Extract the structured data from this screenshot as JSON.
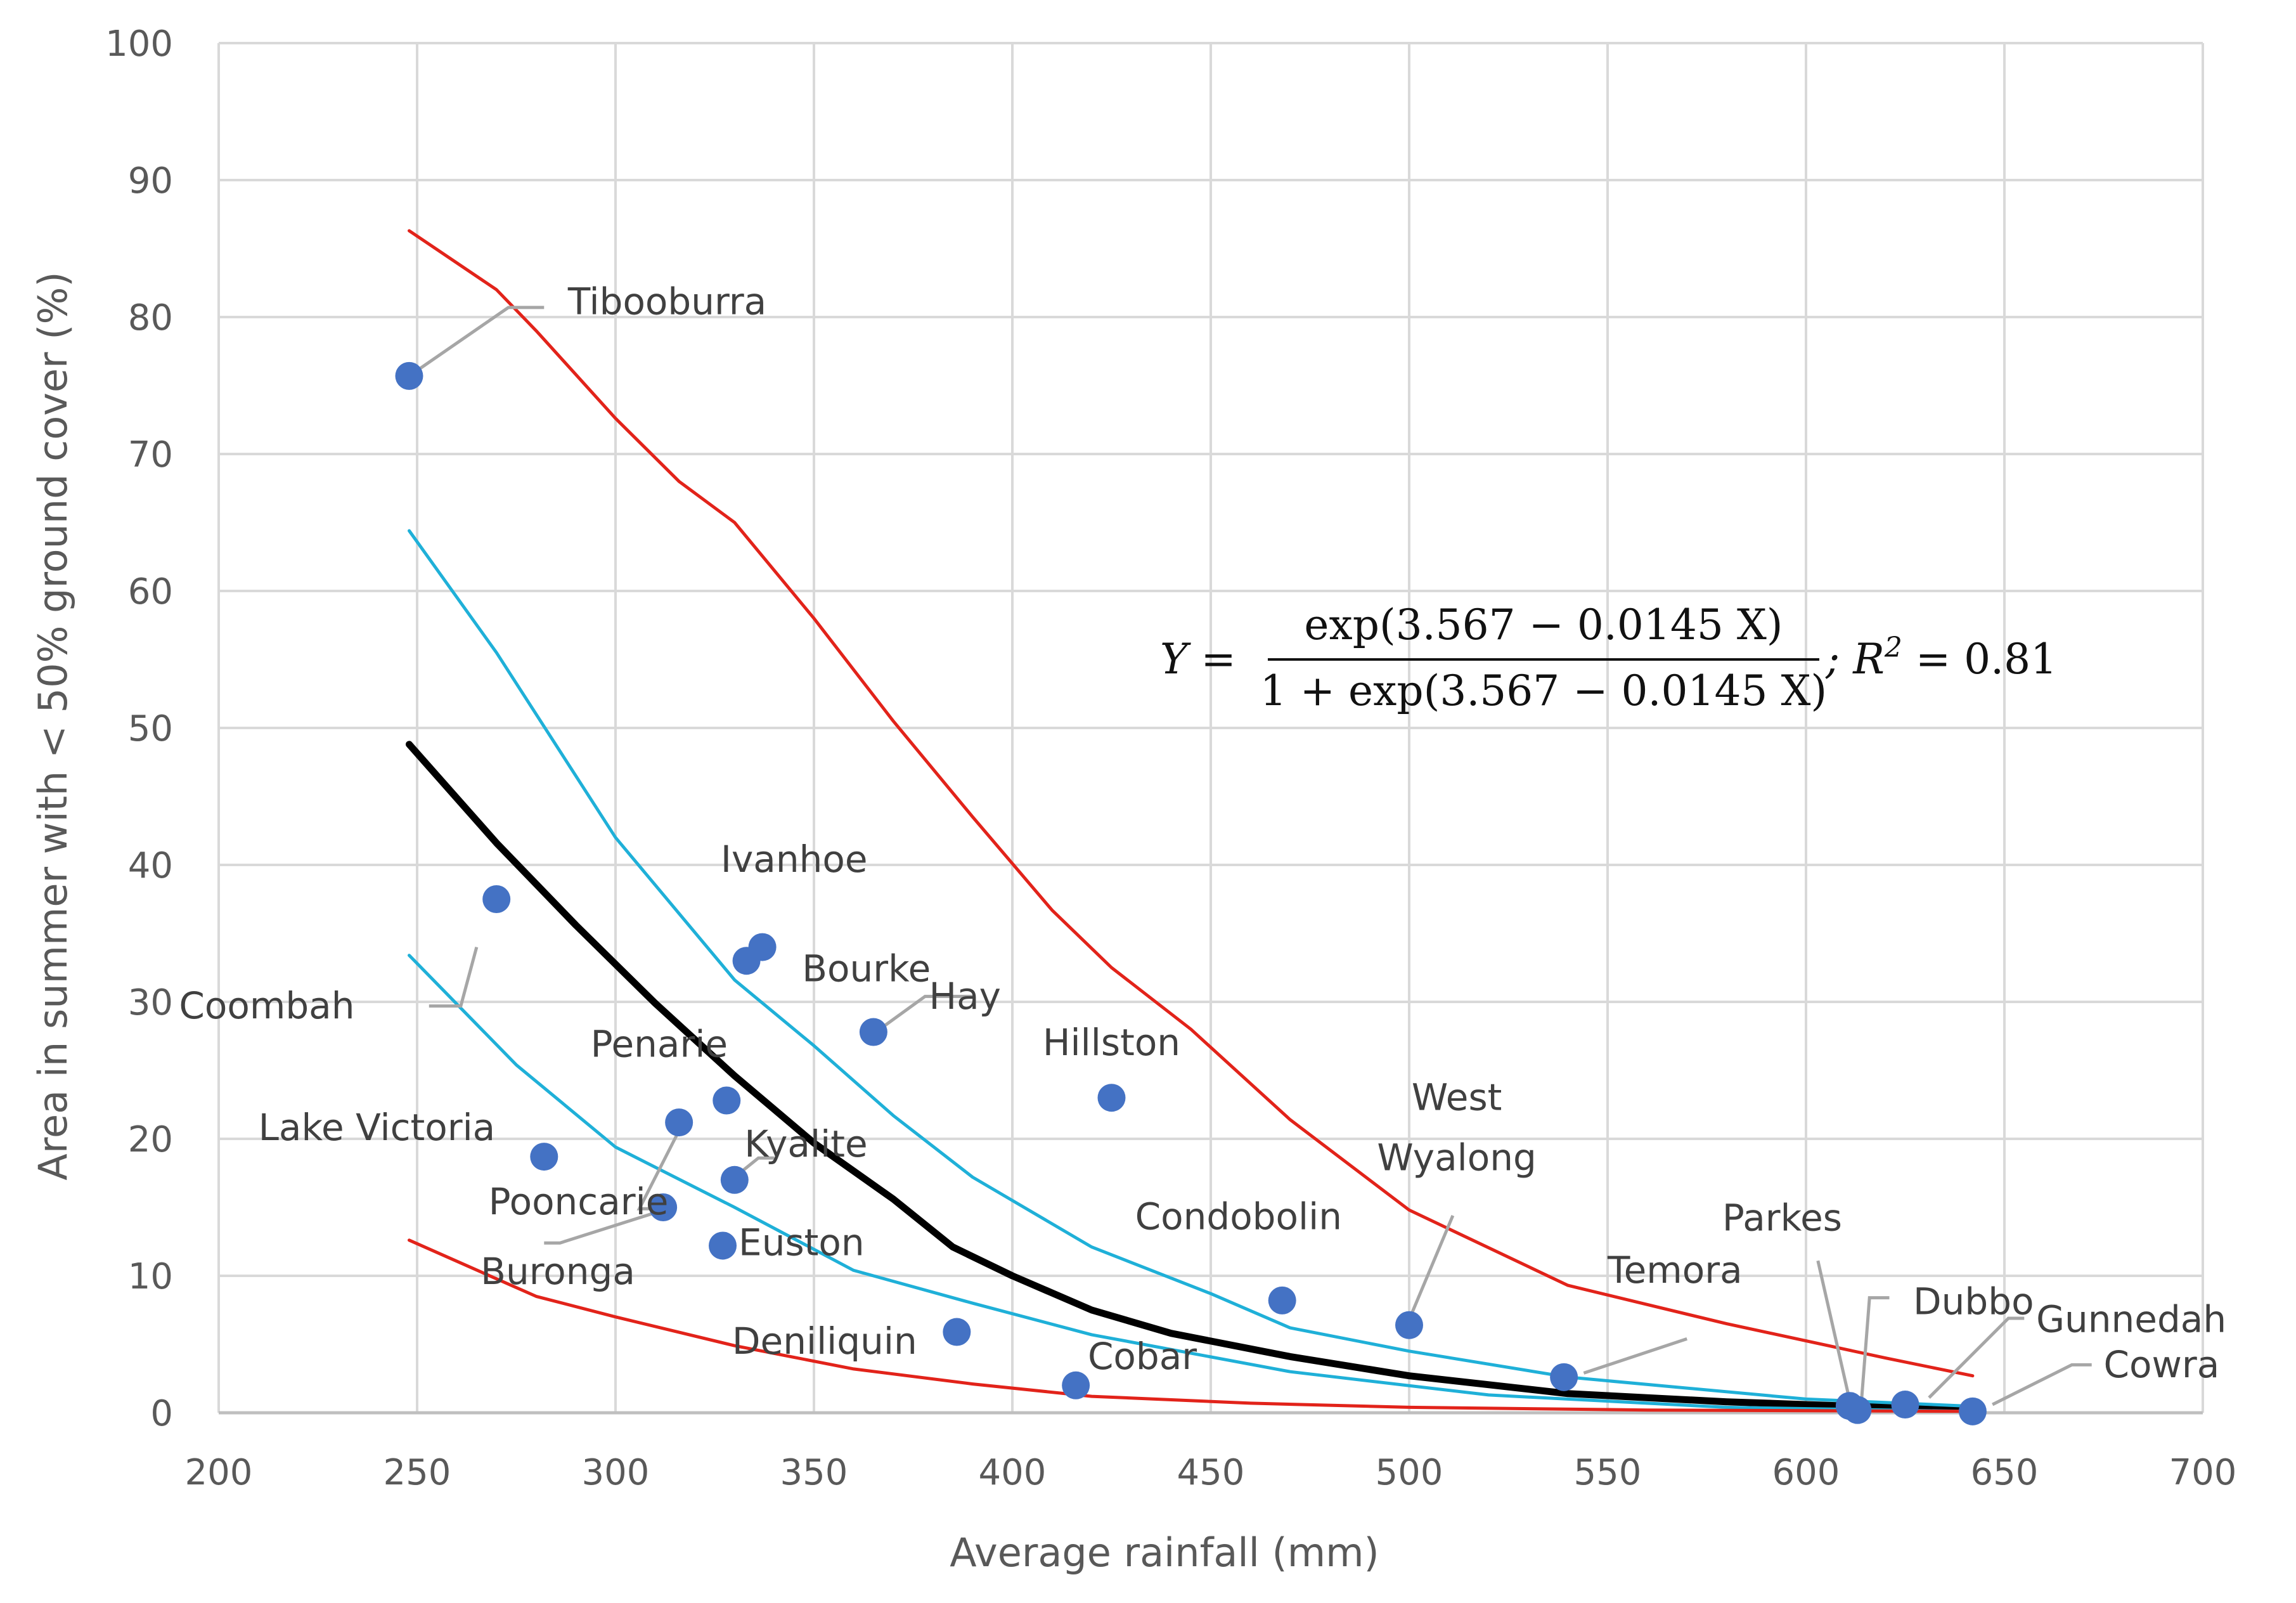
{
  "colors": {
    "grid": "#d9d9d9",
    "axis": "#bfbfbf",
    "point": "#4472c4",
    "leader": "#a6a6a6",
    "fit": "#000000",
    "ci": "#1fb0d8",
    "pi": "#e2231a"
  },
  "chart_data": {
    "type": "scatter",
    "title": "",
    "xlabel": "Average rainfall (mm)",
    "ylabel": "Area in summer with < 50% ground cover (%)",
    "xlim": [
      200,
      700
    ],
    "ylim": [
      0,
      100
    ],
    "x_ticks": [
      "200",
      "250",
      "300",
      "350",
      "400",
      "450",
      "500",
      "550",
      "600",
      "650",
      "700"
    ],
    "y_ticks": [
      "0",
      "10",
      "20",
      "30",
      "40",
      "50",
      "60",
      "70",
      "80",
      "90",
      "100"
    ],
    "grid": true,
    "equation": {
      "lhs": "Y =",
      "numerator": "exp(3.567 − 0.0145 X)",
      "denominator": "1 + exp(3.567 − 0.0145 X)",
      "r2_prefix": "; R",
      "r2_sup": "2",
      "r2_value": " = 0.81"
    },
    "points": [
      {
        "name": "Tibooburra",
        "x": 248,
        "y": 75.7,
        "lx": 288,
        "ly": 80.2,
        "anchor": "start",
        "leader": [
          [
            248,
            75.7
          ],
          [
            273,
            80.7
          ],
          [
            282,
            80.7
          ]
        ]
      },
      {
        "name": "Coombah",
        "x": 270,
        "y": 37.5,
        "lx": 190,
        "ly": 28.8,
        "anchor": "start",
        "leader": [
          [
            265,
            34.0
          ],
          [
            261,
            29.7
          ],
          [
            253,
            29.7
          ]
        ]
      },
      {
        "name": "Ivanhoe",
        "x": 333,
        "y": 33.0,
        "lx": 345,
        "ly": 39.5,
        "anchor": "middle",
        "leader": null
      },
      {
        "name": "Bourke",
        "x": 337,
        "y": 34.0,
        "lx": 347,
        "ly": 31.5,
        "anchor": "start",
        "leader": null
      },
      {
        "name": "Hay",
        "x": 365,
        "y": 27.8,
        "lx": 379,
        "ly": 29.5,
        "anchor": "start",
        "leader": [
          [
            368,
            28.3
          ],
          [
            378,
            30.4
          ],
          [
            390,
            30.4
          ]
        ]
      },
      {
        "name": "Hillston",
        "x": 425,
        "y": 23.0,
        "lx": 425,
        "ly": 26.1,
        "anchor": "middle",
        "leader": null
      },
      {
        "name": "Penarie",
        "x": 328,
        "y": 22.8,
        "lx": 311,
        "ly": 26.0,
        "anchor": "middle",
        "leader": null
      },
      {
        "name": "Lake Victoria",
        "x": 282,
        "y": 18.7,
        "lx": 210,
        "ly": 19.9,
        "anchor": "start",
        "leader": null
      },
      {
        "name": "Kyalite",
        "x": 330,
        "y": 17.0,
        "lx": 348,
        "ly": 18.7,
        "anchor": "middle",
        "leader": [
          [
            330,
            17.2
          ],
          [
            336,
            18.6
          ],
          [
            340,
            18.6
          ]
        ]
      },
      {
        "name": "Pooncarie",
        "x": 316,
        "y": 21.2,
        "lx": 268,
        "ly": 14.5,
        "anchor": "start",
        "leader": [
          [
            316,
            20.6
          ],
          [
            306,
            14.9
          ],
          [
            312,
            14.9
          ]
        ]
      },
      {
        "name": "Buronga",
        "x": 312,
        "y": 15.0,
        "lx": 266,
        "ly": 9.4,
        "anchor": "start",
        "leader": [
          [
            311,
            14.7
          ],
          [
            286,
            12.4
          ],
          [
            282,
            12.4
          ]
        ]
      },
      {
        "name": "Euston",
        "x": 327,
        "y": 12.2,
        "lx": 331,
        "ly": 11.5,
        "anchor": "start",
        "leader": null
      },
      {
        "name": "Deniliquin",
        "x": 386,
        "y": 5.9,
        "lx": 376,
        "ly": 4.3,
        "anchor": "end",
        "leader": null
      },
      {
        "name": "Cobar",
        "x": 416,
        "y": 2.0,
        "lx": 419,
        "ly": 3.2,
        "anchor": "start",
        "leader": null
      },
      {
        "name": "Condobolin",
        "x": 468,
        "y": 8.2,
        "lx": 457,
        "ly": 13.4,
        "anchor": "middle",
        "leader": null
      },
      {
        "name": "West\nWyalong",
        "x": 500,
        "y": 6.4,
        "lx": 512,
        "ly": 22.1,
        "anchor": "middle",
        "leader": [
          [
            500,
            6.8
          ],
          [
            511,
            14.4
          ]
        ]
      },
      {
        "name": "Temora",
        "x": 539,
        "y": 2.6,
        "lx": 550,
        "ly": 9.5,
        "anchor": "start",
        "leader": [
          [
            544,
            2.9
          ],
          [
            570,
            5.4
          ]
        ]
      },
      {
        "name": "Parkes",
        "x": 611,
        "y": 0.5,
        "lx": 594,
        "ly": 13.3,
        "anchor": "middle",
        "leader": [
          [
            611,
            0.9
          ],
          [
            603,
            11.1
          ]
        ]
      },
      {
        "name": "Dubbo",
        "x": 613,
        "y": 0.2,
        "lx": 627,
        "ly": 7.2,
        "anchor": "start",
        "leader": [
          [
            614,
            0.9
          ],
          [
            616,
            8.4
          ],
          [
            621,
            8.4
          ]
        ]
      },
      {
        "name": "Gunnedah",
        "x": 625,
        "y": 0.6,
        "lx": 658,
        "ly": 5.9,
        "anchor": "start",
        "leader": [
          [
            631,
            1.1
          ],
          [
            651,
            6.9
          ],
          [
            655,
            6.9
          ]
        ]
      },
      {
        "name": "Cowra",
        "x": 642,
        "y": 0.1,
        "lx": 675,
        "ly": 2.6,
        "anchor": "start",
        "leader": [
          [
            647,
            0.6
          ],
          [
            667,
            3.5
          ],
          [
            672,
            3.5
          ]
        ]
      }
    ],
    "series": [
      {
        "name": "Fitted curve",
        "color": "#000000",
        "width": 11,
        "x": [
          248,
          270,
          290,
          310,
          330,
          350,
          370,
          385,
          400,
          420,
          440,
          470,
          500,
          540,
          580,
          610,
          640
        ],
        "y": [
          48.8,
          41.6,
          35.6,
          29.9,
          24.6,
          19.7,
          15.6,
          12.1,
          10.0,
          7.5,
          5.8,
          4.1,
          2.7,
          1.4,
          0.8,
          0.5,
          0.3
        ]
      },
      {
        "name": "Upper confidence limit",
        "color": "#1fb0d8",
        "width": 5,
        "x": [
          248,
          270,
          300,
          330,
          350,
          370,
          390,
          420,
          450,
          470,
          500,
          540,
          600,
          640
        ],
        "y": [
          64.4,
          55.5,
          42.0,
          31.6,
          26.8,
          21.7,
          17.2,
          12.1,
          8.7,
          6.2,
          4.5,
          2.6,
          1.0,
          0.5
        ]
      },
      {
        "name": "Lower confidence limit",
        "color": "#1fb0d8",
        "width": 5,
        "x": [
          248,
          275,
          300,
          330,
          360,
          390,
          420,
          470,
          520,
          580,
          640
        ],
        "y": [
          33.4,
          25.4,
          19.4,
          15.0,
          10.4,
          8.0,
          5.7,
          3.0,
          1.3,
          0.4,
          0.1
        ]
      },
      {
        "name": "Upper prediction limit",
        "color": "#e2231a",
        "width": 5,
        "x": [
          248,
          270,
          280,
          300,
          316,
          330,
          350,
          370,
          390,
          410,
          425,
          445,
          470,
          500,
          540,
          580,
          620,
          642
        ],
        "y": [
          86.3,
          82.0,
          79.0,
          72.6,
          68.0,
          65.0,
          58.0,
          50.5,
          43.5,
          36.7,
          32.5,
          28.0,
          21.4,
          14.8,
          9.3,
          6.5,
          4.0,
          2.7
        ]
      },
      {
        "name": "Lower prediction limit",
        "color": "#e2231a",
        "width": 5,
        "x": [
          248,
          280,
          300,
          330,
          360,
          390,
          420,
          460,
          500,
          560,
          642
        ],
        "y": [
          12.6,
          8.5,
          7.0,
          4.9,
          3.2,
          2.1,
          1.2,
          0.7,
          0.4,
          0.2,
          0.1
        ]
      }
    ]
  }
}
